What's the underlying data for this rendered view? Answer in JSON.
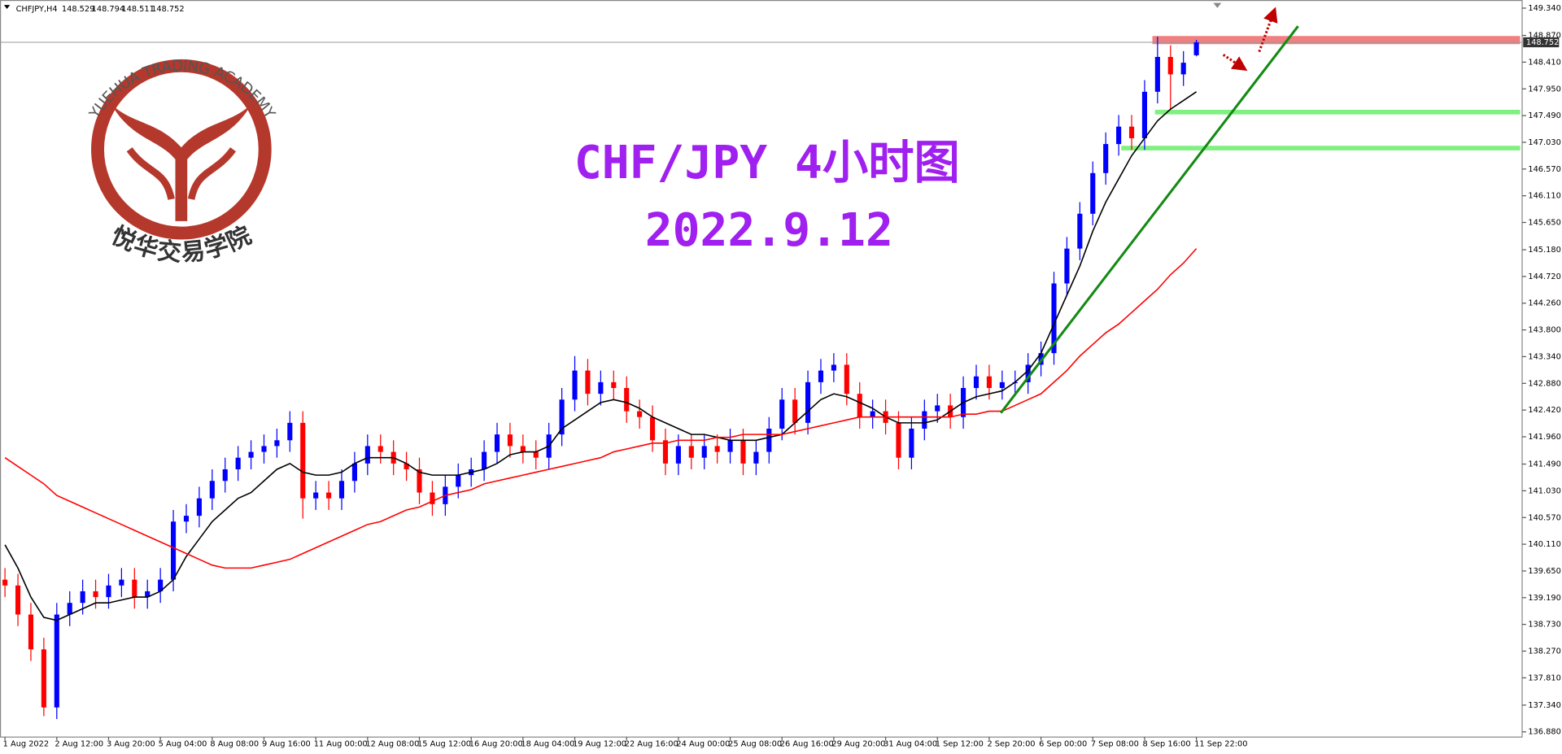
{
  "header": {
    "symbol": "CHFJPY,H4",
    "values": [
      148.529,
      148.794,
      148.511,
      148.752
    ]
  },
  "logo": {
    "name_en": "YUEHUA TRADING ACADEMY",
    "name_cn": "悦华交易学院"
  },
  "chart_data": {
    "type": "candlestick",
    "title": "CHF/JPY 4小时图",
    "subtitle": "2022.9.12",
    "up_color": "#0000ff",
    "down_color": "#ff0000",
    "categories": [
      "1 Aug 2022",
      null,
      null,
      null,
      "2 Aug 12:00",
      null,
      null,
      null,
      "3 Aug 20:00",
      null,
      null,
      null,
      "5 Aug 04:00",
      null,
      null,
      null,
      "8 Aug 08:00",
      null,
      null,
      null,
      "9 Aug 16:00",
      null,
      null,
      null,
      "11 Aug 00:00",
      null,
      null,
      null,
      "12 Aug 08:00",
      null,
      null,
      null,
      "15 Aug 12:00",
      null,
      null,
      null,
      "16 Aug 20:00",
      null,
      null,
      null,
      "18 Aug 04:00",
      null,
      null,
      null,
      "19 Aug 12:00",
      null,
      null,
      null,
      "22 Aug 16:00",
      null,
      null,
      null,
      "24 Aug 00:00",
      null,
      null,
      null,
      "25 Aug 08:00",
      null,
      null,
      null,
      "26 Aug 16:00",
      null,
      null,
      null,
      "29 Aug 20:00",
      null,
      null,
      null,
      "31 Aug 04:00",
      null,
      null,
      null,
      "1 Sep 12:00",
      null,
      null,
      null,
      "2 Sep 20:00",
      null,
      null,
      null,
      "6 Sep 00:00",
      null,
      null,
      null,
      "7 Sep 08:00",
      null,
      null,
      null,
      "8 Sep 16:00",
      null,
      null,
      null,
      "11 Sep 22:00"
    ],
    "open": [
      139.5,
      139.4,
      138.9,
      138.3,
      137.3,
      138.9,
      139.1,
      139.3,
      139.2,
      139.4,
      139.5,
      139.2,
      139.3,
      139.5,
      140.5,
      140.6,
      140.9,
      141.2,
      141.4,
      141.6,
      141.7,
      141.8,
      141.9,
      142.2,
      140.9,
      141.0,
      140.9,
      141.2,
      141.5,
      141.8,
      141.7,
      141.5,
      141.4,
      141.0,
      140.8,
      141.1,
      141.3,
      141.4,
      141.7,
      142.0,
      141.8,
      141.7,
      141.6,
      142.0,
      142.6,
      143.1,
      142.7,
      142.9,
      142.8,
      142.4,
      142.3,
      141.9,
      141.5,
      141.8,
      141.6,
      141.8,
      141.7,
      141.9,
      141.5,
      141.7,
      142.1,
      142.6,
      142.2,
      142.9,
      143.1,
      143.2,
      142.7,
      142.3,
      142.4,
      142.2,
      141.6,
      142.1,
      142.4,
      142.5,
      142.3,
      142.8,
      143.0,
      142.8,
      142.9,
      142.9,
      143.2,
      143.4,
      144.6,
      145.2,
      145.8,
      146.5,
      147.0,
      147.3,
      147.1,
      147.9,
      148.5,
      148.2,
      148.529
    ],
    "high": [
      139.7,
      139.6,
      139.1,
      138.5,
      139.1,
      139.3,
      139.5,
      139.5,
      139.6,
      139.7,
      139.7,
      139.5,
      139.7,
      140.7,
      140.8,
      141.1,
      141.4,
      141.6,
      141.8,
      141.9,
      142.0,
      142.1,
      142.4,
      142.4,
      141.2,
      141.2,
      141.4,
      141.7,
      142.0,
      142.0,
      141.9,
      141.7,
      141.6,
      141.2,
      141.3,
      141.5,
      141.6,
      141.9,
      142.2,
      142.2,
      142.0,
      141.9,
      142.2,
      142.8,
      143.35,
      143.3,
      143.1,
      143.1,
      143.0,
      142.6,
      142.5,
      142.1,
      142.0,
      142.0,
      142.0,
      142.0,
      142.1,
      142.1,
      141.9,
      142.3,
      142.8,
      142.8,
      143.1,
      143.3,
      143.4,
      143.4,
      142.9,
      142.6,
      142.6,
      142.4,
      142.3,
      142.6,
      142.7,
      142.7,
      143.0,
      143.2,
      143.2,
      143.1,
      143.1,
      143.4,
      143.6,
      144.8,
      145.4,
      146.0,
      146.7,
      147.2,
      147.5,
      147.5,
      148.1,
      148.85,
      148.7,
      148.6,
      148.794
    ],
    "low": [
      139.2,
      138.7,
      138.1,
      137.15,
      137.1,
      138.7,
      138.9,
      139.0,
      139.0,
      139.2,
      139.0,
      139.0,
      139.1,
      139.3,
      140.3,
      140.4,
      140.7,
      141.0,
      141.2,
      141.4,
      141.5,
      141.6,
      141.7,
      140.55,
      140.7,
      140.7,
      140.7,
      141.0,
      141.3,
      141.5,
      141.3,
      141.2,
      140.8,
      140.6,
      140.6,
      140.9,
      141.1,
      141.2,
      141.5,
      141.6,
      141.5,
      141.4,
      141.4,
      141.8,
      142.4,
      142.5,
      142.5,
      142.6,
      142.2,
      142.1,
      141.7,
      141.3,
      141.3,
      141.4,
      141.4,
      141.5,
      141.5,
      141.3,
      141.3,
      141.5,
      141.9,
      142.0,
      142.0,
      142.7,
      142.9,
      142.5,
      142.1,
      142.1,
      142.0,
      141.4,
      141.4,
      141.9,
      142.2,
      142.1,
      142.1,
      142.6,
      142.6,
      142.6,
      142.7,
      142.7,
      143.0,
      143.2,
      144.4,
      145.0,
      145.6,
      146.3,
      146.8,
      146.9,
      146.9,
      147.7,
      147.6,
      148.0,
      148.511
    ],
    "close": [
      139.4,
      138.9,
      138.3,
      137.3,
      138.9,
      139.1,
      139.3,
      139.2,
      139.4,
      139.5,
      139.2,
      139.3,
      139.5,
      140.5,
      140.6,
      140.9,
      141.2,
      141.4,
      141.6,
      141.7,
      141.8,
      141.9,
      142.2,
      140.9,
      141.0,
      140.9,
      141.2,
      141.5,
      141.8,
      141.7,
      141.5,
      141.4,
      141.0,
      140.8,
      141.1,
      141.3,
      141.4,
      141.7,
      142.0,
      141.8,
      141.7,
      141.6,
      142.0,
      142.6,
      143.1,
      142.7,
      142.9,
      142.8,
      142.4,
      142.3,
      141.9,
      141.5,
      141.8,
      141.6,
      141.8,
      141.7,
      141.9,
      141.5,
      141.7,
      142.1,
      142.6,
      142.2,
      142.9,
      143.1,
      143.2,
      142.7,
      142.3,
      142.4,
      142.2,
      141.6,
      142.1,
      142.4,
      142.5,
      142.3,
      142.8,
      143.0,
      142.8,
      142.9,
      142.9,
      143.2,
      143.4,
      144.6,
      145.2,
      145.8,
      146.5,
      147.0,
      147.3,
      147.1,
      147.9,
      148.5,
      148.2,
      148.4,
      148.752
    ],
    "lines": [
      {
        "color": "#000000",
        "values": [
          140.1,
          139.7,
          139.2,
          138.85,
          138.8,
          138.9,
          139.0,
          139.1,
          139.1,
          139.15,
          139.2,
          139.2,
          139.3,
          139.5,
          139.9,
          140.2,
          140.5,
          140.7,
          140.9,
          141.0,
          141.2,
          141.4,
          141.5,
          141.35,
          141.3,
          141.3,
          141.35,
          141.5,
          141.6,
          141.6,
          141.6,
          141.5,
          141.35,
          141.3,
          141.3,
          141.3,
          141.35,
          141.4,
          141.5,
          141.65,
          141.7,
          141.7,
          141.8,
          142.1,
          142.25,
          142.4,
          142.55,
          142.6,
          142.55,
          142.45,
          142.3,
          142.2,
          142.1,
          142.0,
          142.0,
          141.95,
          141.9,
          141.9,
          141.9,
          141.95,
          142.0,
          142.2,
          142.4,
          142.6,
          142.7,
          142.65,
          142.55,
          142.45,
          142.3,
          142.2,
          142.2,
          142.2,
          142.25,
          142.4,
          142.55,
          142.65,
          142.7,
          142.75,
          142.9,
          143.1,
          143.4,
          143.9,
          144.4,
          144.9,
          145.5,
          146.0,
          146.4,
          146.8,
          147.1,
          147.4,
          147.6,
          147.75,
          147.9
        ]
      },
      {
        "color": "#ff0000",
        "values": [
          141.6,
          141.45,
          141.3,
          141.15,
          140.95,
          140.85,
          140.75,
          140.65,
          140.55,
          140.45,
          140.35,
          140.25,
          140.15,
          140.05,
          139.95,
          139.85,
          139.75,
          139.7,
          139.7,
          139.7,
          139.75,
          139.8,
          139.85,
          139.95,
          140.05,
          140.15,
          140.25,
          140.35,
          140.45,
          140.5,
          140.6,
          140.7,
          140.75,
          140.85,
          140.95,
          141.0,
          141.05,
          141.15,
          141.2,
          141.25,
          141.3,
          141.35,
          141.4,
          141.45,
          141.5,
          141.55,
          141.6,
          141.7,
          141.75,
          141.8,
          141.85,
          141.85,
          141.9,
          141.9,
          141.9,
          141.95,
          141.95,
          142.0,
          142.0,
          142.0,
          142.0,
          142.05,
          142.1,
          142.15,
          142.2,
          142.25,
          142.3,
          142.3,
          142.3,
          142.3,
          142.3,
          142.3,
          142.3,
          142.3,
          142.35,
          142.35,
          142.4,
          142.4,
          142.5,
          142.6,
          142.7,
          142.9,
          143.1,
          143.35,
          143.55,
          143.75,
          143.9,
          144.1,
          144.3,
          144.5,
          144.75,
          144.95,
          145.2
        ]
      }
    ],
    "zones": [
      {
        "from": 88.6,
        "ylim": [
          148.72,
          148.86
        ],
        "color": "#f08080"
      },
      {
        "from": 88.8,
        "ylim": [
          147.51,
          147.59
        ],
        "color": "#80f080"
      },
      {
        "from": 86.2,
        "ylim": [
          146.89,
          146.97
        ],
        "color": "#80f080"
      }
    ],
    "trendline": {
      "x": [
        76.9,
        99.85
      ],
      "y": [
        142.37,
        149.03
      ],
      "color": "#138a13"
    },
    "last_price": 148.752,
    "ylim": [
      136.79,
      149.48
    ],
    "yticks": [
      {
        "value": 149.34,
        "label": "149.340"
      },
      {
        "value": 148.87,
        "label": "148.870"
      },
      {
        "value": 148.41,
        "label": "148.410"
      },
      {
        "value": 147.95,
        "label": "147.950"
      },
      {
        "value": 147.49,
        "label": "147.490"
      },
      {
        "value": 147.03,
        "label": "147.030"
      },
      {
        "value": 146.57,
        "label": "146.570"
      },
      {
        "value": 146.11,
        "label": "146.110"
      },
      {
        "value": 145.65,
        "label": "145.650"
      },
      {
        "value": 145.18,
        "label": "145.180"
      },
      {
        "value": 144.72,
        "label": "144.720"
      },
      {
        "value": 144.26,
        "label": "144.260"
      },
      {
        "value": 143.8,
        "label": "143.800"
      },
      {
        "value": 143.34,
        "label": "143.340"
      },
      {
        "value": 142.88,
        "label": "142.880"
      },
      {
        "value": 142.42,
        "label": "142.420"
      },
      {
        "value": 141.96,
        "label": "141.960"
      },
      {
        "value": 141.49,
        "label": "141.490"
      },
      {
        "value": 141.03,
        "label": "141.030"
      },
      {
        "value": 140.57,
        "label": "140.570"
      },
      {
        "value": 140.11,
        "label": "140.110"
      },
      {
        "value": 139.65,
        "label": "139.650"
      },
      {
        "value": 139.19,
        "label": "139.190"
      },
      {
        "value": 138.73,
        "label": "138.730"
      },
      {
        "value": 138.27,
        "label": "138.270"
      },
      {
        "value": 137.81,
        "label": "137.810"
      },
      {
        "value": 137.34,
        "label": "137.340"
      },
      {
        "value": 136.88,
        "label": "136.880"
      }
    ]
  }
}
